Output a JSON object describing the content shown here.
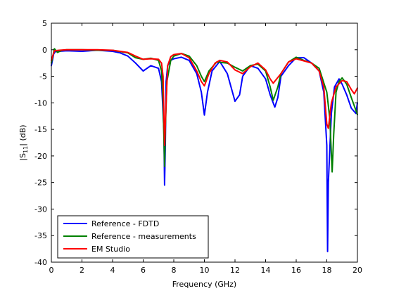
{
  "chart_data": {
    "type": "line",
    "title": "",
    "xlabel": "Frequency (GHz)",
    "ylabel": {
      "base": "|S",
      "sub": "11",
      "rest": "| (dB)"
    },
    "xlim": [
      0,
      20
    ],
    "ylim": [
      -40,
      5
    ],
    "xticks": [
      0,
      2,
      4,
      6,
      8,
      10,
      12,
      14,
      16,
      18,
      20
    ],
    "yticks": [
      5,
      0,
      -5,
      -10,
      -15,
      -20,
      -25,
      -30,
      -35,
      -40
    ],
    "grid": false,
    "legend_position": "bottom-left",
    "series": [
      {
        "name": "Reference - FDTD",
        "color": "#0000ff",
        "x": [
          0,
          0.15,
          0.3,
          0.5,
          1,
          2,
          3,
          4,
          4.5,
          5,
          5.5,
          6,
          6.5,
          7,
          7.2,
          7.35,
          7.4,
          7.45,
          7.5,
          7.6,
          7.8,
          8,
          8.5,
          9,
          9.5,
          9.8,
          10,
          10.2,
          10.5,
          11,
          11.5,
          12,
          12.3,
          12.5,
          13,
          13.5,
          14,
          14.3,
          14.6,
          14.8,
          15,
          15.5,
          16,
          16.5,
          17,
          17.5,
          17.8,
          18,
          18.05,
          18.1,
          18.3,
          18.5,
          18.8,
          19,
          19.3,
          19.6,
          19.9,
          20
        ],
        "y": [
          -3,
          -0.8,
          -0.2,
          -0.3,
          -0.2,
          -0.3,
          -0.1,
          -0.3,
          -0.6,
          -1.2,
          -2.5,
          -4,
          -3,
          -3.5,
          -6,
          -15,
          -25.5,
          -18,
          -6,
          -3,
          -2,
          -1.7,
          -1.4,
          -2,
          -4.5,
          -8,
          -12.3,
          -8,
          -4,
          -2.2,
          -4.5,
          -9.7,
          -8.5,
          -5,
          -3,
          -3.5,
          -5.5,
          -8.5,
          -10.8,
          -9,
          -5,
          -3,
          -1.5,
          -1.5,
          -2.5,
          -4,
          -8,
          -18,
          -38,
          -25,
          -12,
          -7,
          -5.5,
          -6.5,
          -8.5,
          -11,
          -12,
          -10
        ]
      },
      {
        "name": "Reference - measurements",
        "color": "#008000",
        "x": [
          0,
          0.2,
          0.4,
          0.7,
          1,
          2,
          3,
          4,
          5,
          5.5,
          6,
          6.5,
          7,
          7.2,
          7.3,
          7.4,
          7.45,
          7.55,
          7.8,
          8,
          8.5,
          9,
          9.5,
          9.8,
          10,
          10.3,
          10.8,
          11.5,
          12,
          12.5,
          13,
          13.5,
          14,
          14.3,
          14.5,
          14.8,
          15,
          15.5,
          16,
          16.5,
          17,
          17.5,
          18,
          18.2,
          18.35,
          18.45,
          18.6,
          18.8,
          19,
          19.3,
          19.6,
          20
        ],
        "y": [
          -2.5,
          0.2,
          -0.5,
          -0.1,
          0,
          0,
          -0.1,
          -0.1,
          -0.6,
          -1.5,
          -1.8,
          -1.6,
          -2,
          -4,
          -10,
          -22,
          -15,
          -6,
          -2,
          -1.2,
          -0.7,
          -1.2,
          -3,
          -5,
          -6,
          -4,
          -2.3,
          -2.5,
          -3.3,
          -4,
          -3,
          -2.7,
          -4,
          -7,
          -9.5,
          -7,
          -4.5,
          -2.3,
          -1.4,
          -2,
          -2.5,
          -3.5,
          -8,
          -13,
          -23,
          -16,
          -8,
          -6,
          -5.3,
          -6.5,
          -9,
          -12.2
        ]
      },
      {
        "name": "EM Studio",
        "color": "#ff0000",
        "x": [
          0,
          0.2,
          0.5,
          1,
          2,
          3,
          4,
          5,
          5.5,
          6,
          6.5,
          7,
          7.2,
          7.3,
          7.4,
          7.5,
          7.6,
          7.8,
          8,
          8.5,
          9,
          9.5,
          9.8,
          10,
          10.3,
          10.7,
          11,
          11.5,
          12,
          12.5,
          13,
          13.5,
          14,
          14.3,
          14.5,
          15,
          15.5,
          16,
          16.5,
          17,
          17.5,
          17.8,
          18,
          18.1,
          18.3,
          18.6,
          19,
          19.3,
          19.6,
          19.8,
          20
        ],
        "y": [
          -2,
          -0.2,
          -0.1,
          0,
          0,
          0,
          -0.1,
          -0.5,
          -1.2,
          -1.8,
          -1.7,
          -1.8,
          -2.5,
          -5,
          -18,
          -10,
          -3,
          -1.3,
          -0.9,
          -0.7,
          -1.5,
          -4,
          -6,
          -6.8,
          -4.5,
          -2.5,
          -2,
          -2.3,
          -3.8,
          -4.5,
          -3.2,
          -2.5,
          -3.8,
          -5.5,
          -6.3,
          -4.5,
          -2.3,
          -1.7,
          -2.1,
          -2.5,
          -4,
          -7,
          -14,
          -14.8,
          -10,
          -7,
          -5.8,
          -6,
          -7.5,
          -8.3,
          -7.2
        ]
      }
    ]
  }
}
